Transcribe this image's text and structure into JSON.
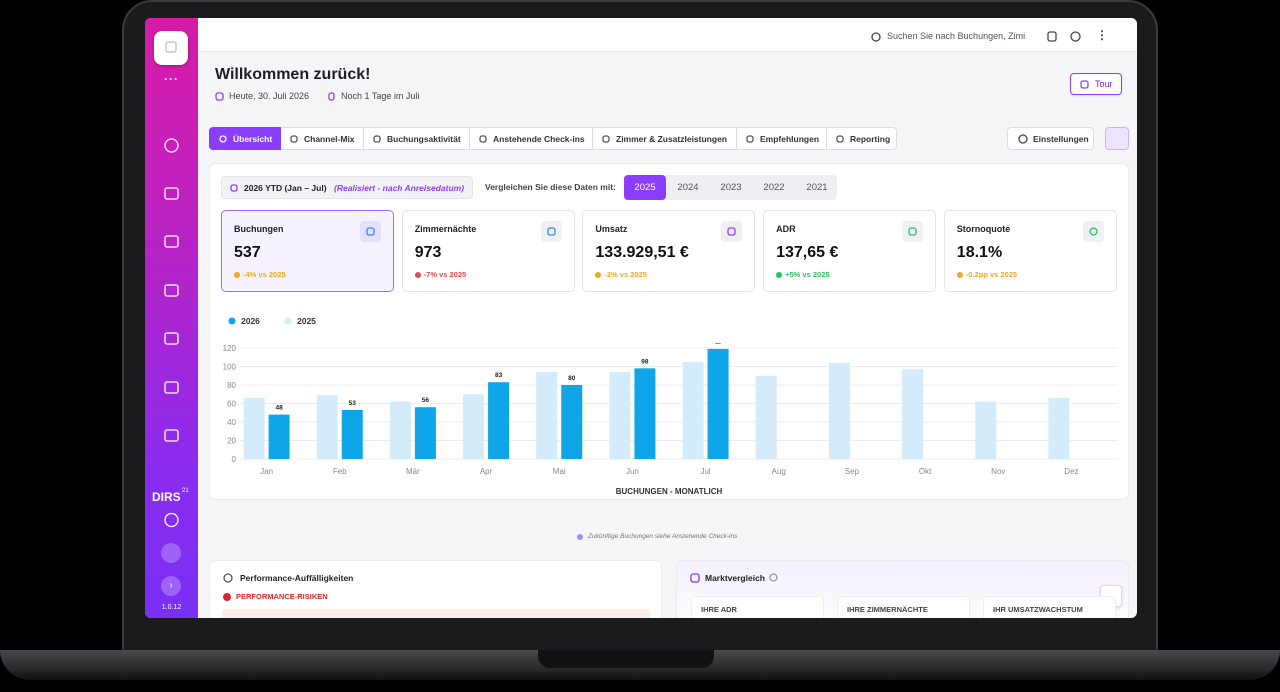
{
  "topbar": {
    "search_placeholder": "Suchen Sie nach Buchungen, Zimi"
  },
  "sidebar": {
    "brand": "DIRS",
    "brand_sup": "21",
    "version": "1.0.12"
  },
  "header": {
    "title": "Willkommen zurück!",
    "date": "Heute, 30. Juli 2026",
    "remaining": "Noch 1 Tage im Juli",
    "tour": "Tour"
  },
  "tabs": [
    "Übersicht",
    "Channel-Mix",
    "Buchungsaktivität",
    "Anstehende Check-ins",
    "Zimmer & Zusatzleistungen",
    "Empfehlungen",
    "Reporting"
  ],
  "settings": "Einstellungen",
  "period": {
    "label": "2026 YTD (Jan – Jul)",
    "note": "(Realisiert - nach Anreisedatum)",
    "compare_label": "Vergleichen Sie diese Daten mit:",
    "years": [
      "2025",
      "2024",
      "2023",
      "2022",
      "2021"
    ]
  },
  "kpis": [
    {
      "label": "Buchungen",
      "value": "537",
      "delta": "-4% vs 2025",
      "color": "#f5a623"
    },
    {
      "label": "Zimmernächte",
      "value": "973",
      "delta": "-7% vs 2025",
      "color": "#e5484d"
    },
    {
      "label": "Umsatz",
      "value": "133.929,51 €",
      "delta": "-2% vs 2025",
      "color": "#f5a623"
    },
    {
      "label": "ADR",
      "value": "137,65 €",
      "delta": "+5% vs 2025",
      "color": "#22c55e"
    },
    {
      "label": "Stornoquote",
      "value": "18.1%",
      "delta": "-0.2pp vs 2025",
      "color": "#f5a623"
    }
  ],
  "chart_data": {
    "type": "bar",
    "x_label": "BUCHUNGEN - MONATLICH",
    "categories": [
      "Jan",
      "Feb",
      "Mär",
      "Apr",
      "Mai",
      "Jun",
      "Jul",
      "Aug",
      "Sep",
      "Okt",
      "Nov",
      "Dez"
    ],
    "series": [
      {
        "name": "2026",
        "color": "#0ea5e9",
        "values": [
          48,
          53,
          56,
          83,
          80,
          98,
          119,
          null,
          null,
          null,
          null,
          null
        ],
        "value_labels": [
          "48",
          "53",
          "56",
          "83",
          "80",
          "98",
          "...",
          null,
          null,
          null,
          null,
          null
        ]
      },
      {
        "name": "2025",
        "color": "#d3ebfa",
        "values": [
          66,
          69,
          62,
          70,
          94,
          94,
          105,
          90,
          104,
          97,
          62,
          66
        ]
      }
    ],
    "ylim": [
      0,
      120
    ],
    "yticks": [
      0,
      20,
      40,
      60,
      80,
      100,
      120
    ],
    "grid": true
  },
  "note": "Zukünftige Buchungen siehe Anstehende Check-ins",
  "panels": {
    "performance": {
      "title": "Performance-Auffälligkeiten",
      "risks": "PERFORMANCE-RISIKEN"
    },
    "market": {
      "title": "Marktvergleich",
      "columns": [
        "IHRE ADR",
        "IHRE ZIMMERNÄCHTE",
        "IHR UMSATZWACHSTUM"
      ]
    }
  }
}
